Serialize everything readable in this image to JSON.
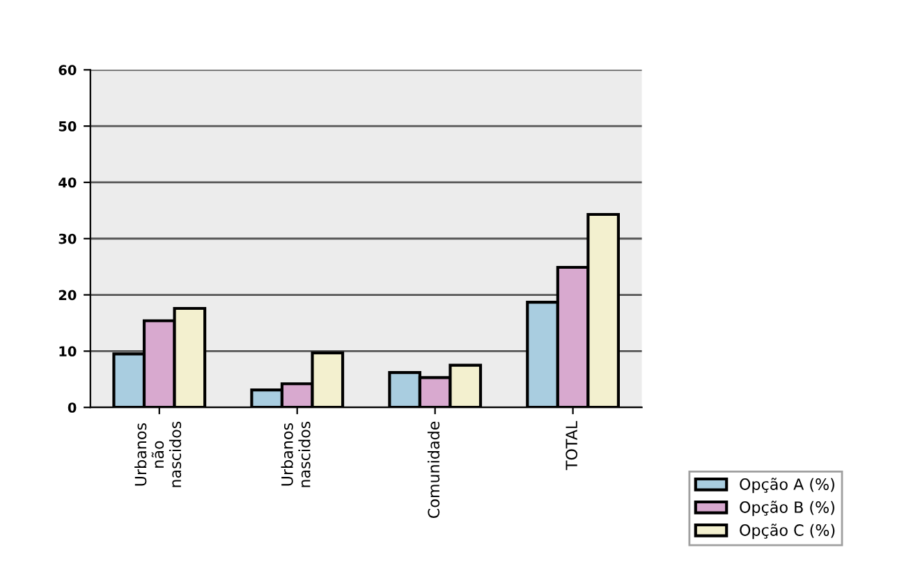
{
  "chart_data": {
    "type": "bar",
    "categories": [
      "Urbanos\nnão\nnascidos",
      "Urbanos\nnascidos",
      "Comunidade",
      "TOTAL"
    ],
    "series": [
      {
        "name": "Opção A (%)",
        "color": "#a9cde0",
        "values": [
          9.5,
          3.1,
          6.2,
          18.7
        ]
      },
      {
        "name": "Opção B (%)",
        "color": "#d8a9cf",
        "values": [
          15.4,
          4.2,
          5.3,
          24.9
        ]
      },
      {
        "name": "Opção C (%)",
        "color": "#f3f0cf",
        "values": [
          17.6,
          9.7,
          7.5,
          34.3
        ]
      }
    ],
    "ylim": [
      0,
      60
    ],
    "yticks": [
      0,
      10,
      20,
      30,
      40,
      50,
      60
    ],
    "grid": "y",
    "legend": "bottom right"
  }
}
